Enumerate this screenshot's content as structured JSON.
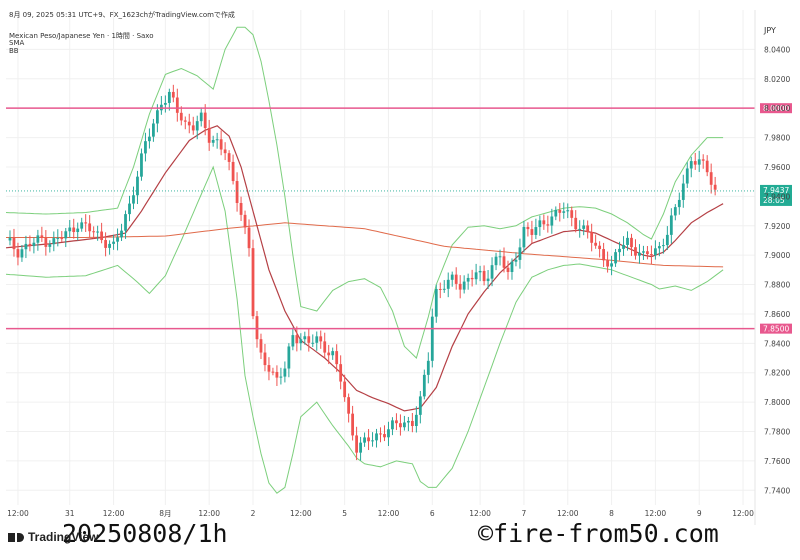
{
  "header": {
    "line1": "8月 09, 2025 05:31 UTC+9、FX_1623chがTradingView.comで作成",
    "line2": "Mexican Peso/Japanese Yen · 1時間 · Saxo",
    "line3": "SMA",
    "line4": "BB"
  },
  "watermark_left": "20250808/1h",
  "watermark_right": "©fire-from50.com",
  "logo_text": "TradingView",
  "chart_data": {
    "type": "candlestick",
    "currency": "JPY",
    "ylim": [
      7.73,
      8.06
    ],
    "y_ticks": [
      7.74,
      7.76,
      7.78,
      7.8,
      7.82,
      7.84,
      7.86,
      7.88,
      7.9,
      7.92,
      7.94,
      7.96,
      7.98,
      8.0,
      8.02,
      8.04
    ],
    "x_ticks": [
      {
        "label": "12:00",
        "t": 3
      },
      {
        "label": "31",
        "t": 16
      },
      {
        "label": "12:00",
        "t": 27
      },
      {
        "label": "8月",
        "t": 40
      },
      {
        "label": "12:00",
        "t": 51
      },
      {
        "label": "2",
        "t": 62
      },
      {
        "label": "12:00",
        "t": 74
      },
      {
        "label": "5",
        "t": 85
      },
      {
        "label": "12:00",
        "t": 96
      },
      {
        "label": "6",
        "t": 107
      },
      {
        "label": "12:00",
        "t": 119
      },
      {
        "label": "7",
        "t": 130
      },
      {
        "label": "12:00",
        "t": 141
      },
      {
        "label": "8",
        "t": 152
      },
      {
        "label": "12:00",
        "t": 163
      },
      {
        "label": "9",
        "t": 174
      },
      {
        "label": "12:00",
        "t": 185
      }
    ],
    "x_range": [
      0,
      188
    ],
    "close_series": [
      [
        0,
        7.91
      ],
      [
        3,
        7.903
      ],
      [
        6,
        7.907
      ],
      [
        9,
        7.911
      ],
      [
        12,
        7.909
      ],
      [
        15,
        7.914
      ],
      [
        18,
        7.922
      ],
      [
        21,
        7.917
      ],
      [
        24,
        7.912
      ],
      [
        27,
        7.905
      ],
      [
        29,
        7.918
      ],
      [
        31,
        7.935
      ],
      [
        33,
        7.955
      ],
      [
        35,
        7.975
      ],
      [
        37,
        7.99
      ],
      [
        39,
        8.005
      ],
      [
        41,
        8.008
      ],
      [
        43,
        7.998
      ],
      [
        45,
        7.99
      ],
      [
        47,
        7.988
      ],
      [
        49,
        7.992
      ],
      [
        51,
        7.98
      ],
      [
        53,
        7.978
      ],
      [
        55,
        7.97
      ],
      [
        57,
        7.948
      ],
      [
        59,
        7.93
      ],
      [
        61,
        7.905
      ],
      [
        62,
        7.86
      ],
      [
        63,
        7.84
      ],
      [
        64,
        7.83
      ],
      [
        66,
        7.825
      ],
      [
        68,
        7.815
      ],
      [
        70,
        7.822
      ],
      [
        72,
        7.846
      ],
      [
        74,
        7.844
      ],
      [
        76,
        7.84
      ],
      [
        78,
        7.842
      ],
      [
        80,
        7.838
      ],
      [
        82,
        7.832
      ],
      [
        84,
        7.815
      ],
      [
        86,
        7.79
      ],
      [
        88,
        7.77
      ],
      [
        90,
        7.772
      ],
      [
        92,
        7.775
      ],
      [
        94,
        7.779
      ],
      [
        96,
        7.782
      ],
      [
        98,
        7.784
      ],
      [
        100,
        7.786
      ],
      [
        102,
        7.787
      ],
      [
        104,
        7.8
      ],
      [
        106,
        7.83
      ],
      [
        107,
        7.86
      ],
      [
        108,
        7.876
      ],
      [
        110,
        7.88
      ],
      [
        112,
        7.882
      ],
      [
        114,
        7.88
      ],
      [
        116,
        7.884
      ],
      [
        118,
        7.888
      ],
      [
        120,
        7.881
      ],
      [
        122,
        7.895
      ],
      [
        124,
        7.9
      ],
      [
        126,
        7.885
      ],
      [
        128,
        7.9
      ],
      [
        130,
        7.918
      ],
      [
        132,
        7.915
      ],
      [
        134,
        7.92
      ],
      [
        136,
        7.925
      ],
      [
        138,
        7.928
      ],
      [
        140,
        7.93
      ],
      [
        142,
        7.925
      ],
      [
        144,
        7.92
      ],
      [
        146,
        7.914
      ],
      [
        148,
        7.905
      ],
      [
        150,
        7.9
      ],
      [
        152,
        7.892
      ],
      [
        154,
        7.905
      ],
      [
        156,
        7.91
      ],
      [
        158,
        7.904
      ],
      [
        160,
        7.898
      ],
      [
        162,
        7.902
      ],
      [
        164,
        7.906
      ],
      [
        166,
        7.915
      ],
      [
        168,
        7.93
      ],
      [
        170,
        7.95
      ],
      [
        172,
        7.966
      ],
      [
        174,
        7.962
      ],
      [
        176,
        7.958
      ],
      [
        178,
        7.944
      ]
    ],
    "sma_long": [
      [
        0,
        7.912
      ],
      [
        20,
        7.912
      ],
      [
        40,
        7.913
      ],
      [
        55,
        7.918
      ],
      [
        70,
        7.922
      ],
      [
        90,
        7.918
      ],
      [
        110,
        7.906
      ],
      [
        130,
        7.901
      ],
      [
        150,
        7.897
      ],
      [
        165,
        7.893
      ],
      [
        180,
        7.892
      ]
    ],
    "bb_basis": [
      [
        0,
        7.905
      ],
      [
        12,
        7.908
      ],
      [
        24,
        7.912
      ],
      [
        30,
        7.915
      ],
      [
        34,
        7.93
      ],
      [
        40,
        7.956
      ],
      [
        46,
        7.978
      ],
      [
        50,
        7.985
      ],
      [
        53,
        7.988
      ],
      [
        56,
        7.981
      ],
      [
        59,
        7.96
      ],
      [
        62,
        7.93
      ],
      [
        66,
        7.89
      ],
      [
        70,
        7.862
      ],
      [
        74,
        7.842
      ],
      [
        80,
        7.83
      ],
      [
        84,
        7.82
      ],
      [
        88,
        7.808
      ],
      [
        92,
        7.803
      ],
      [
        96,
        7.799
      ],
      [
        100,
        7.794
      ],
      [
        104,
        7.796
      ],
      [
        108,
        7.81
      ],
      [
        112,
        7.838
      ],
      [
        116,
        7.86
      ],
      [
        120,
        7.875
      ],
      [
        124,
        7.888
      ],
      [
        128,
        7.898
      ],
      [
        132,
        7.908
      ],
      [
        136,
        7.912
      ],
      [
        140,
        7.916
      ],
      [
        144,
        7.917
      ],
      [
        148,
        7.915
      ],
      [
        152,
        7.91
      ],
      [
        156,
        7.905
      ],
      [
        160,
        7.9
      ],
      [
        162,
        7.899
      ],
      [
        165,
        7.902
      ],
      [
        168,
        7.91
      ],
      [
        172,
        7.922
      ],
      [
        176,
        7.929
      ],
      [
        180,
        7.935
      ]
    ],
    "bb_upper": [
      [
        0,
        7.929
      ],
      [
        10,
        7.928
      ],
      [
        20,
        7.929
      ],
      [
        28,
        7.932
      ],
      [
        32,
        7.96
      ],
      [
        36,
        7.996
      ],
      [
        40,
        8.023
      ],
      [
        44,
        8.027
      ],
      [
        48,
        8.022
      ],
      [
        52,
        8.013
      ],
      [
        55,
        8.04
      ],
      [
        58,
        8.055
      ],
      [
        60,
        8.055
      ],
      [
        62,
        8.05
      ],
      [
        64,
        8.032
      ],
      [
        66,
        8.005
      ],
      [
        68,
        7.975
      ],
      [
        70,
        7.94
      ],
      [
        72,
        7.9
      ],
      [
        74,
        7.865
      ],
      [
        78,
        7.862
      ],
      [
        82,
        7.876
      ],
      [
        86,
        7.882
      ],
      [
        90,
        7.884
      ],
      [
        94,
        7.878
      ],
      [
        97,
        7.862
      ],
      [
        100,
        7.838
      ],
      [
        103,
        7.83
      ],
      [
        106,
        7.858
      ],
      [
        108,
        7.88
      ],
      [
        112,
        7.907
      ],
      [
        116,
        7.919
      ],
      [
        120,
        7.92
      ],
      [
        124,
        7.918
      ],
      [
        128,
        7.92
      ],
      [
        132,
        7.926
      ],
      [
        136,
        7.929
      ],
      [
        140,
        7.932
      ],
      [
        144,
        7.933
      ],
      [
        148,
        7.932
      ],
      [
        152,
        7.928
      ],
      [
        156,
        7.922
      ],
      [
        160,
        7.914
      ],
      [
        162,
        7.911
      ],
      [
        165,
        7.928
      ],
      [
        168,
        7.95
      ],
      [
        172,
        7.968
      ],
      [
        176,
        7.98
      ],
      [
        180,
        7.98
      ]
    ],
    "bb_lower": [
      [
        0,
        7.887
      ],
      [
        10,
        7.885
      ],
      [
        20,
        7.886
      ],
      [
        28,
        7.893
      ],
      [
        32,
        7.884
      ],
      [
        36,
        7.874
      ],
      [
        40,
        7.886
      ],
      [
        44,
        7.91
      ],
      [
        48,
        7.935
      ],
      [
        52,
        7.96
      ],
      [
        55,
        7.93
      ],
      [
        58,
        7.87
      ],
      [
        60,
        7.818
      ],
      [
        62,
        7.79
      ],
      [
        64,
        7.765
      ],
      [
        66,
        7.745
      ],
      [
        68,
        7.738
      ],
      [
        70,
        7.742
      ],
      [
        72,
        7.765
      ],
      [
        74,
        7.79
      ],
      [
        78,
        7.8
      ],
      [
        82,
        7.784
      ],
      [
        86,
        7.77
      ],
      [
        88,
        7.762
      ],
      [
        90,
        7.758
      ],
      [
        94,
        7.756
      ],
      [
        98,
        7.76
      ],
      [
        102,
        7.758
      ],
      [
        104,
        7.746
      ],
      [
        106,
        7.742
      ],
      [
        108,
        7.742
      ],
      [
        112,
        7.755
      ],
      [
        116,
        7.78
      ],
      [
        120,
        7.81
      ],
      [
        124,
        7.84
      ],
      [
        128,
        7.868
      ],
      [
        132,
        7.885
      ],
      [
        136,
        7.89
      ],
      [
        140,
        7.893
      ],
      [
        144,
        7.894
      ],
      [
        148,
        7.892
      ],
      [
        152,
        7.89
      ],
      [
        156,
        7.886
      ],
      [
        160,
        7.882
      ],
      [
        162,
        7.88
      ],
      [
        164,
        7.877
      ],
      [
        166,
        7.878
      ],
      [
        168,
        7.879
      ],
      [
        172,
        7.876
      ],
      [
        176,
        7.882
      ],
      [
        180,
        7.89
      ]
    ],
    "horizontal_lines": [
      {
        "label": "8.0000",
        "value": 8.0,
        "color": "#e8588e"
      },
      {
        "label": "7.8500",
        "value": 7.85,
        "color": "#e8588e"
      }
    ],
    "last_price": {
      "label": "7.9437",
      "countdown": "28:05",
      "value": 7.9437,
      "color": "#22ab94"
    },
    "colors": {
      "up": "#26a69a",
      "down": "#ef5350",
      "sma": "#e06a4a",
      "bb_basis": "#b54045",
      "bb_band": "#7ccf7c",
      "grid": "#f0f0f0"
    }
  }
}
